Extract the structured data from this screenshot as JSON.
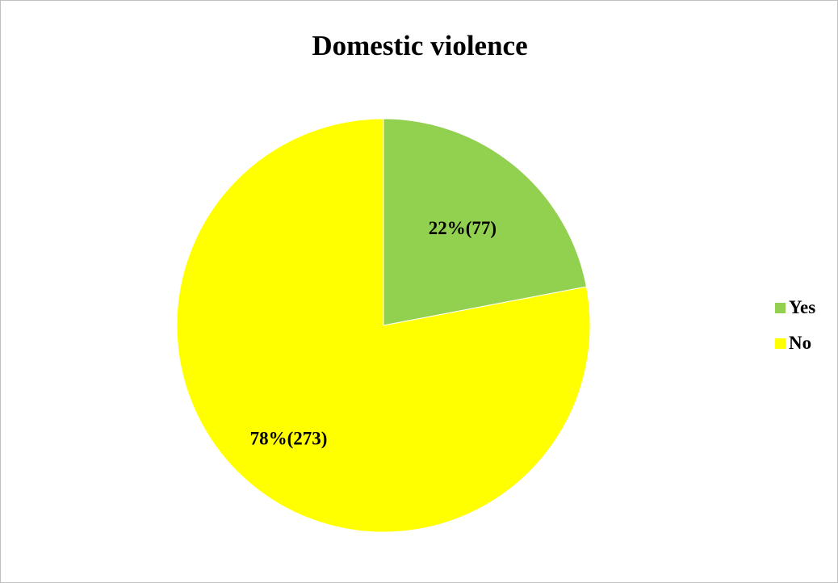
{
  "chart_data": {
    "type": "pie",
    "title": "Domestic violence",
    "categories": [
      "Yes",
      "No"
    ],
    "values": [
      77,
      273
    ],
    "percentages": [
      22,
      78
    ],
    "data_labels": [
      "22%(77)",
      "78%(273)"
    ],
    "colors": [
      "#92D050",
      "#FFFF00"
    ],
    "legend_position": "right",
    "legend": [
      {
        "label": "Yes",
        "color": "#92D050"
      },
      {
        "label": "No",
        "color": "#FFFF00"
      }
    ]
  }
}
